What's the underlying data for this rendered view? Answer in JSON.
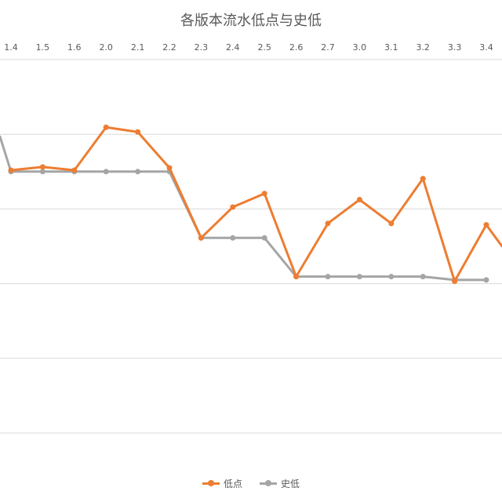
{
  "chart_data": {
    "type": "line",
    "title": "各版本流水低点与史低",
    "categories": [
      "1.4",
      "1.5",
      "1.6",
      "2.0",
      "2.1",
      "2.2",
      "2.3",
      "2.4",
      "2.5",
      "2.6",
      "2.7",
      "3.0",
      "3.1",
      "3.2",
      "3.3",
      "3.4"
    ],
    "series": [
      {
        "name": "低点",
        "color": "#ED7D31",
        "values": [
          5.63,
          5.7,
          5.63,
          6.55,
          6.45,
          5.68,
          4.18,
          4.84,
          5.13,
          3.35,
          4.49,
          5.0,
          4.49,
          5.45,
          3.25,
          4.46
        ]
      },
      {
        "name": "史低",
        "color": "#A5A5A5",
        "values": [
          5.6,
          5.6,
          5.6,
          5.6,
          5.6,
          5.6,
          4.18,
          4.18,
          4.18,
          3.35,
          3.35,
          3.35,
          3.35,
          3.35,
          3.28,
          3.28
        ]
      }
    ],
    "ylim": [
      0,
      8
    ],
    "grid": true,
    "legend": "bottom"
  }
}
